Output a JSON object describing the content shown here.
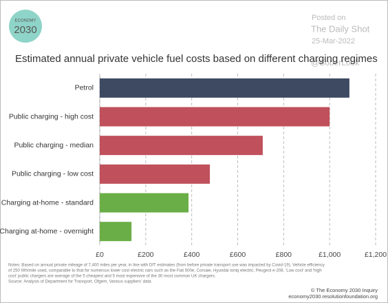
{
  "chart_data": {
    "type": "barh",
    "title": "Estimated  annual private vehicle fuel costs based on different charging regimes",
    "categories": [
      "Petrol",
      "Public charging - high cost",
      "Public charging - median",
      "Public charging - low cost",
      "Charging at-home - standard",
      "Charging at-home - overnight"
    ],
    "values": [
      1086,
      1000,
      709,
      479,
      386,
      138
    ],
    "colors": [
      "#3e4a62",
      "#c0505b",
      "#c0505b",
      "#c0505b",
      "#6aae47",
      "#6aae47"
    ],
    "xlim": [
      0,
      1200
    ],
    "xticks": [
      {
        "value": 0,
        "label": "£0"
      },
      {
        "value": 200,
        "label": "£200"
      },
      {
        "value": 400,
        "label": "£400"
      },
      {
        "value": 600,
        "label": "£600"
      },
      {
        "value": 800,
        "label": "£800"
      },
      {
        "value": 1000,
        "label": "£1,000"
      },
      {
        "value": 1200,
        "label": "£1,200"
      }
    ],
    "grid": true,
    "notes": [
      "Notes: Based on annual private mileage of 7,400 miles per year, in line with DfT estimates (from before private transport use was impacted by Covid-19). Vehicle efficiency",
      "of 250 Wh/mile used, comparable to that for numerous lower cost electric cars such as the Fiat 500e, Corsaie, Hyundai Ioniq electric, Peugeot e-208. 'Low cost' and 'high",
      "cost' public chargers are average of the 5 cheapest and 5 most expensive of the 30 most common UK chargers.",
      "Source: Analysis of Department for Transport, Ofgem, Various suppliers' data"
    ],
    "credit": [
      "© The Economy 2030 Inquiry",
      "economy2030.resolutionfoundation.org"
    ],
    "logo": {
      "top": "ECONOMY",
      "bottom": "2030"
    },
    "watermark": [
      "Posted on",
      "The Daily Shot",
      "25-Mar-2022",
      "@SoberLook"
    ]
  }
}
